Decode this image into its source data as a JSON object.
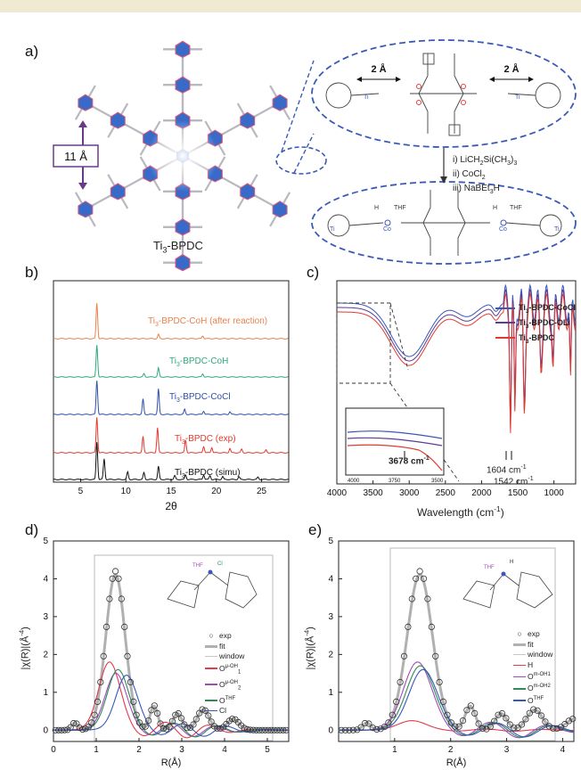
{
  "panels": {
    "a": {
      "label": "a)",
      "framework_name": "Ti",
      "framework_sub": "3",
      "framework_suffix": "-BPDC",
      "pore_size": "11 Å",
      "distance_left": "2 Å",
      "distance_right": "2 Å",
      "step1": "i) LiCH",
      "step1_sub1": "2",
      "step1_mid": "Si(CH",
      "step1_sub2": "3",
      "step1_end": ")",
      "step1_sub3": "3",
      "step2": "ii) CoCl",
      "step2_sub": "2",
      "step3": "iii) NaBEt",
      "step3_sub": "3",
      "step3_end": "H"
    },
    "b": {
      "label": "b)"
    },
    "c": {
      "label": "c)"
    },
    "d": {
      "label": "d)"
    },
    "e": {
      "label": "e)"
    }
  },
  "chart_data": [
    {
      "id": "b",
      "type": "line",
      "xlabel": "2θ",
      "xlim": [
        2,
        28
      ],
      "xticks": [
        5,
        10,
        15,
        20,
        25
      ],
      "series": [
        {
          "name": "Ti3-BPDC-CoH (after reaction)",
          "color": "#e8824a",
          "peaks": [
            [
              6.8,
              1.0
            ],
            [
              13.6,
              0.12
            ],
            [
              18.5,
              0.08
            ]
          ]
        },
        {
          "name": "Ti3-BPDC-CoH",
          "color": "#2ea97a",
          "peaks": [
            [
              6.8,
              1.0
            ],
            [
              13.6,
              0.28
            ],
            [
              12.0,
              0.1
            ],
            [
              18.5,
              0.1
            ]
          ]
        },
        {
          "name": "Ti3-BPDC-CoCl",
          "color": "#2f4fa8",
          "peaks": [
            [
              6.8,
              1.0
            ],
            [
              11.9,
              0.45
            ],
            [
              13.6,
              0.75
            ],
            [
              16.5,
              0.15
            ],
            [
              18.6,
              0.1
            ],
            [
              21.5,
              0.08
            ]
          ]
        },
        {
          "name": "Ti3-BPDC (exp)",
          "color": "#e23a2e",
          "peaks": [
            [
              6.8,
              1.0
            ],
            [
              11.9,
              0.45
            ],
            [
              13.5,
              0.7
            ],
            [
              16.6,
              0.35
            ],
            [
              18.6,
              0.18
            ],
            [
              19.5,
              0.15
            ],
            [
              21.5,
              0.12
            ],
            [
              22.8,
              0.1
            ],
            [
              25.5,
              0.08
            ]
          ]
        },
        {
          "name": "Ti3-BPDC (simu)",
          "color": "#111111",
          "peaks": [
            [
              6.8,
              1.0
            ],
            [
              7.6,
              0.55
            ],
            [
              10.2,
              0.2
            ],
            [
              12.0,
              0.18
            ],
            [
              13.6,
              0.35
            ],
            [
              15.4,
              0.1
            ],
            [
              16.6,
              0.12
            ],
            [
              18.6,
              0.12
            ],
            [
              19.3,
              0.1
            ],
            [
              20.7,
              0.08
            ],
            [
              22.5,
              0.07
            ],
            [
              24.6,
              0.06
            ]
          ]
        }
      ]
    },
    {
      "id": "c",
      "type": "line",
      "xlabel": "Wavelength (cm⁻¹)",
      "xlim": [
        4000,
        700
      ],
      "xticks": [
        4000,
        3500,
        3000,
        2500,
        2000,
        1500,
        1000
      ],
      "legend": "top-right",
      "annotations": [
        "1604 cm⁻¹",
        "1542 cm⁻¹",
        "3678 cm⁻¹"
      ],
      "inset_xticks": [
        4000,
        3750,
        3500
      ],
      "series": [
        {
          "name": "Ti3-BPDC-CoCl",
          "color": "#3a56b8"
        },
        {
          "name": "Ti3-BPDC-OLi",
          "color": "#5a3a9a"
        },
        {
          "name": "Ti3-BPDC",
          "color": "#e23a2e"
        }
      ]
    },
    {
      "id": "d",
      "type": "line",
      "xlabel": "R(Å)",
      "ylabel": "|χ(R)|(Å⁻⁴)",
      "xlim": [
        0,
        5.5
      ],
      "ylim": [
        -0.3,
        5
      ],
      "xticks": [
        0,
        1,
        2,
        3,
        4,
        5
      ],
      "yticks": [
        0,
        1,
        2,
        3,
        4,
        5
      ],
      "legend": "right",
      "series": [
        {
          "name": "exp",
          "color": "#333333",
          "marker": "circle"
        },
        {
          "name": "fit",
          "color": "#b0b0b0"
        },
        {
          "name": "window",
          "color": "#c8c8c8"
        },
        {
          "name": "Oμ-OH",
          "sub": "1",
          "color": "#e23a4e",
          "peak": [
            1.3,
            1.8
          ]
        },
        {
          "name": "Oμ-OH",
          "sub": "2",
          "color": "#a04ab8",
          "peak": [
            1.45,
            1.5
          ]
        },
        {
          "name": "OTHF",
          "color": "#2e8a5a",
          "peak": [
            1.5,
            1.6
          ]
        },
        {
          "name": "Cl",
          "color": "#3a56b8",
          "peak": [
            1.7,
            1.45
          ]
        }
      ]
    },
    {
      "id": "e",
      "type": "line",
      "xlabel": "R(Å)",
      "ylabel": "|χ(R)|(Å⁻⁴)",
      "xlim": [
        0,
        4.2
      ],
      "ylim": [
        -0.3,
        5
      ],
      "xticks": [
        1,
        2,
        3,
        4
      ],
      "yticks": [
        0,
        1,
        2,
        3,
        4,
        5
      ],
      "legend": "right",
      "series": [
        {
          "name": "exp",
          "color": "#333333",
          "marker": "circle"
        },
        {
          "name": "fit",
          "color": "#b0b0b0"
        },
        {
          "name": "window",
          "color": "#c8c8c8"
        },
        {
          "name": "H",
          "color": "#e23a4e",
          "peak": [
            1.3,
            0.25
          ]
        },
        {
          "name": "Om-OH1",
          "color": "#a04ab8",
          "peak": [
            1.4,
            1.8
          ]
        },
        {
          "name": "Om-OH2",
          "color": "#2e8a5a",
          "peak": [
            1.45,
            1.7
          ]
        },
        {
          "name": "OTHF",
          "color": "#3a56b8",
          "peak": [
            1.5,
            1.6
          ]
        }
      ]
    }
  ],
  "labels": {
    "b_series": [
      "Ti",
      "Ti",
      "Ti",
      "Ti",
      "Ti"
    ],
    "b_tail": [
      "-BPDC-CoH (after reaction)",
      "-BPDC-CoH",
      "-BPDC-CoCl",
      "-BPDC (exp)",
      "-BPDC (simu)"
    ],
    "c_legend_tail": [
      "-BPDC-CoCl",
      "-BPDC-OLi",
      "-BPDC"
    ],
    "c_ann1": "1604 cm",
    "c_ann2": "1542 cm",
    "c_ann3": "3678 cm",
    "c_sup": "-1",
    "c_xlabel_main": "Wavelength (cm",
    "c_xlabel_sup": "-1",
    "c_xlabel_end": ")",
    "d_legend": [
      "exp",
      "fit",
      "window",
      "O",
      "O",
      "O",
      "Cl"
    ],
    "d_legend_sup": [
      "",
      "",
      "",
      "μ-OH",
      "μ-OH",
      "THF",
      ""
    ],
    "d_legend_sub": [
      "",
      "",
      "",
      "1",
      "2",
      "",
      ""
    ],
    "e_legend": [
      "exp",
      "fit",
      "window",
      "H",
      "O",
      "O",
      "O"
    ],
    "e_legend_sup": [
      "",
      "",
      "",
      "",
      "m-OH1",
      "m-OH2",
      "THF"
    ],
    "y_label_main": "|χ(R)|(Å",
    "y_label_sup": "-4",
    "y_label_end": ")",
    "r_label": "R(Å)",
    "two_theta": "2θ",
    "mol_labels": [
      "THF",
      "Cl",
      "Co",
      "Ti",
      "Ti",
      "H"
    ]
  }
}
